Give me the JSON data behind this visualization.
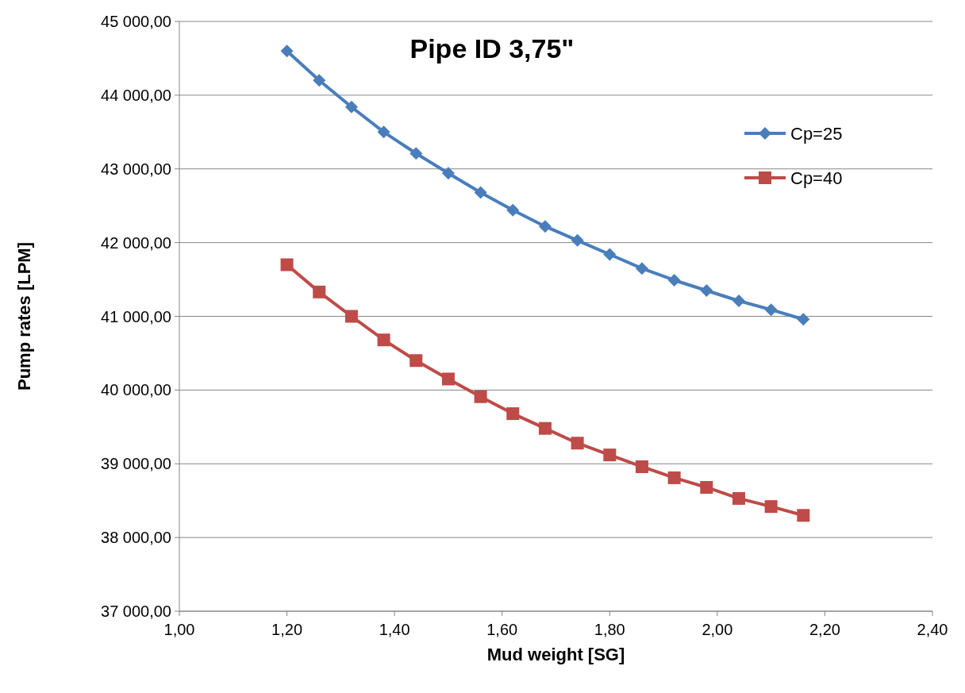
{
  "chart_data": {
    "type": "line",
    "title": "Pipe ID 3,75\"",
    "xlabel": "Mud weight [SG]",
    "ylabel": "Pump rates [LPM]",
    "x": [
      1.2,
      1.26,
      1.32,
      1.38,
      1.44,
      1.5,
      1.56,
      1.62,
      1.68,
      1.74,
      1.8,
      1.86,
      1.92,
      1.98,
      2.04,
      2.1,
      2.16
    ],
    "series": [
      {
        "name": "Cp=25",
        "color": "#4a7ebb",
        "marker": "diamond",
        "values": [
          44600,
          44200,
          43840,
          43500,
          43210,
          42940,
          42680,
          42440,
          42220,
          42030,
          41840,
          41650,
          41490,
          41350,
          41210,
          41090,
          40960
        ]
      },
      {
        "name": "Cp=40",
        "color": "#be4b48",
        "marker": "square",
        "values": [
          41700,
          41330,
          41000,
          40680,
          40400,
          40150,
          39910,
          39680,
          39480,
          39280,
          39120,
          38960,
          38810,
          38680,
          38530,
          38420,
          38300
        ]
      }
    ],
    "xlim": [
      1,
      2.4
    ],
    "xticks": [
      {
        "value": 1,
        "label": "1,00"
      },
      {
        "value": 1.2,
        "label": "1,20"
      },
      {
        "value": 1.4,
        "label": "1,40"
      },
      {
        "value": 1.6,
        "label": "1,60"
      },
      {
        "value": 1.8,
        "label": "1,80"
      },
      {
        "value": 2,
        "label": "2,00"
      },
      {
        "value": 2.2,
        "label": "2,20"
      },
      {
        "value": 2.4,
        "label": "2,40"
      }
    ],
    "ylim": [
      37000,
      45000
    ],
    "yticks": [
      {
        "value": 37000,
        "label": "37 000,00"
      },
      {
        "value": 38000,
        "label": "38 000,00"
      },
      {
        "value": 39000,
        "label": "39 000,00"
      },
      {
        "value": 40000,
        "label": "40 000,00"
      },
      {
        "value": 41000,
        "label": "41 000,00"
      },
      {
        "value": 42000,
        "label": "42 000,00"
      },
      {
        "value": 43000,
        "label": "43 000,00"
      },
      {
        "value": 44000,
        "label": "44 000,00"
      },
      {
        "value": 45000,
        "label": "45 000,00"
      }
    ],
    "grid": "y",
    "legend": "top right",
    "line_style": "solid"
  }
}
